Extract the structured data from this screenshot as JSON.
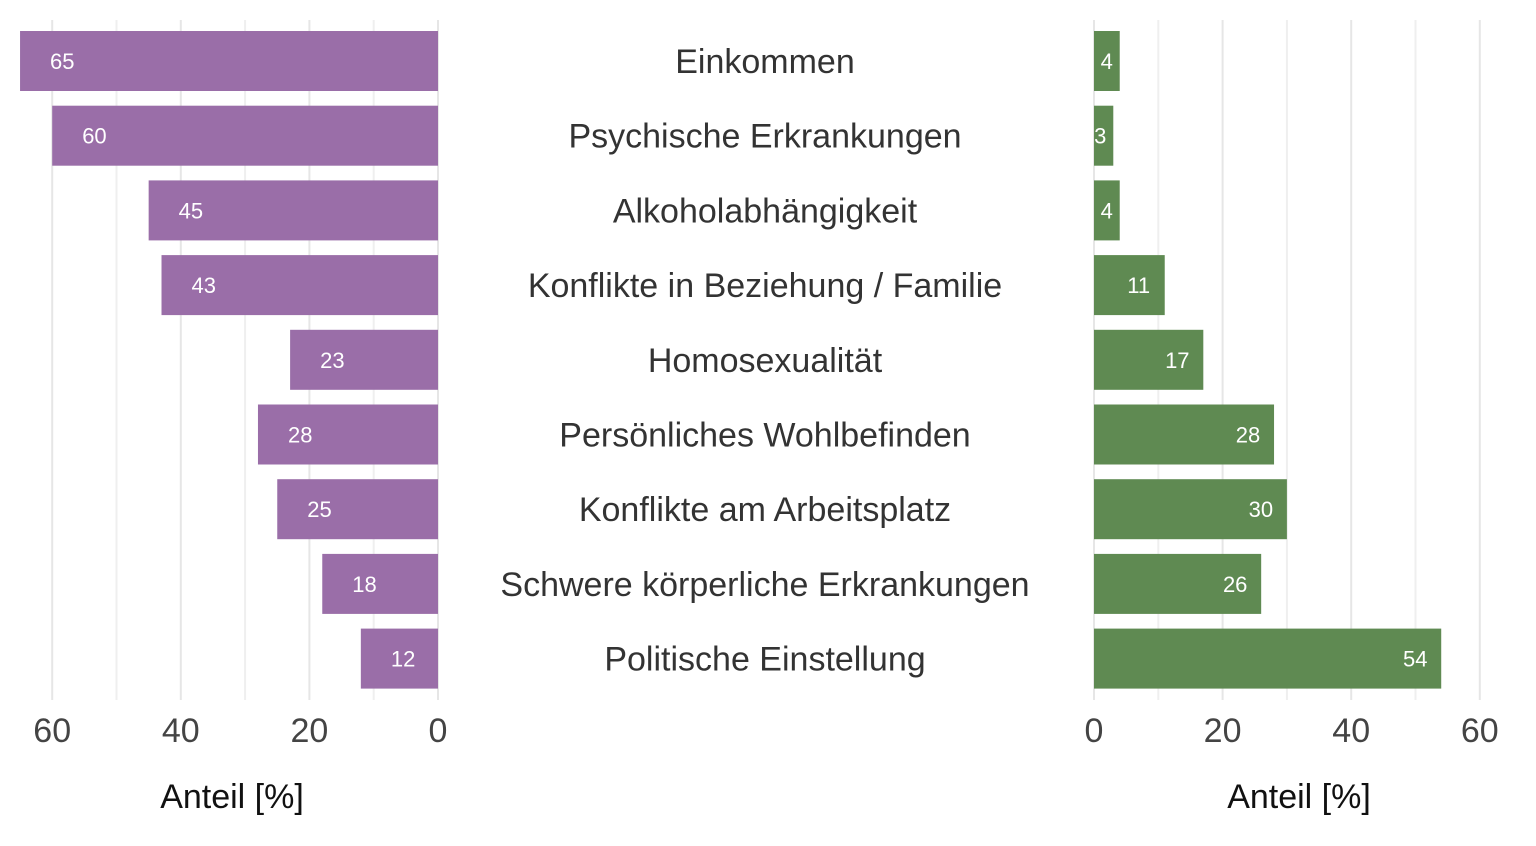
{
  "chart_data": {
    "type": "bar",
    "orientation": "horizontal",
    "categories": [
      "Einkommen",
      "Psychische Erkrankungen",
      "Alkoholabhängigkeit",
      "Konflikte in Beziehung / Familie",
      "Homosexualität",
      "Persönliches Wohlbefinden",
      "Konflikte am Arbeitsplatz",
      "Schwere körperliche Erkrankungen",
      "Politische Einstellung"
    ],
    "series": [
      {
        "name": "left",
        "color": "#9a6ea8",
        "values": [
          65,
          60,
          45,
          43,
          23,
          28,
          25,
          18,
          12
        ]
      },
      {
        "name": "right",
        "color": "#5f8a52",
        "values": [
          4,
          3,
          4,
          11,
          17,
          28,
          30,
          26,
          54
        ]
      }
    ],
    "left_axis": {
      "xlabel": "Anteil [%]",
      "xlim": [
        0,
        60
      ],
      "ticks": [
        "60",
        "40",
        "20",
        "0"
      ],
      "tick_values": [
        60,
        40,
        20,
        0
      ],
      "reversed": true
    },
    "right_axis": {
      "xlabel": "Anteil [%]",
      "xlim": [
        0,
        60
      ],
      "ticks": [
        "0",
        "20",
        "40",
        "60"
      ],
      "tick_values": [
        0,
        20,
        40,
        60
      ]
    },
    "grid": true
  }
}
